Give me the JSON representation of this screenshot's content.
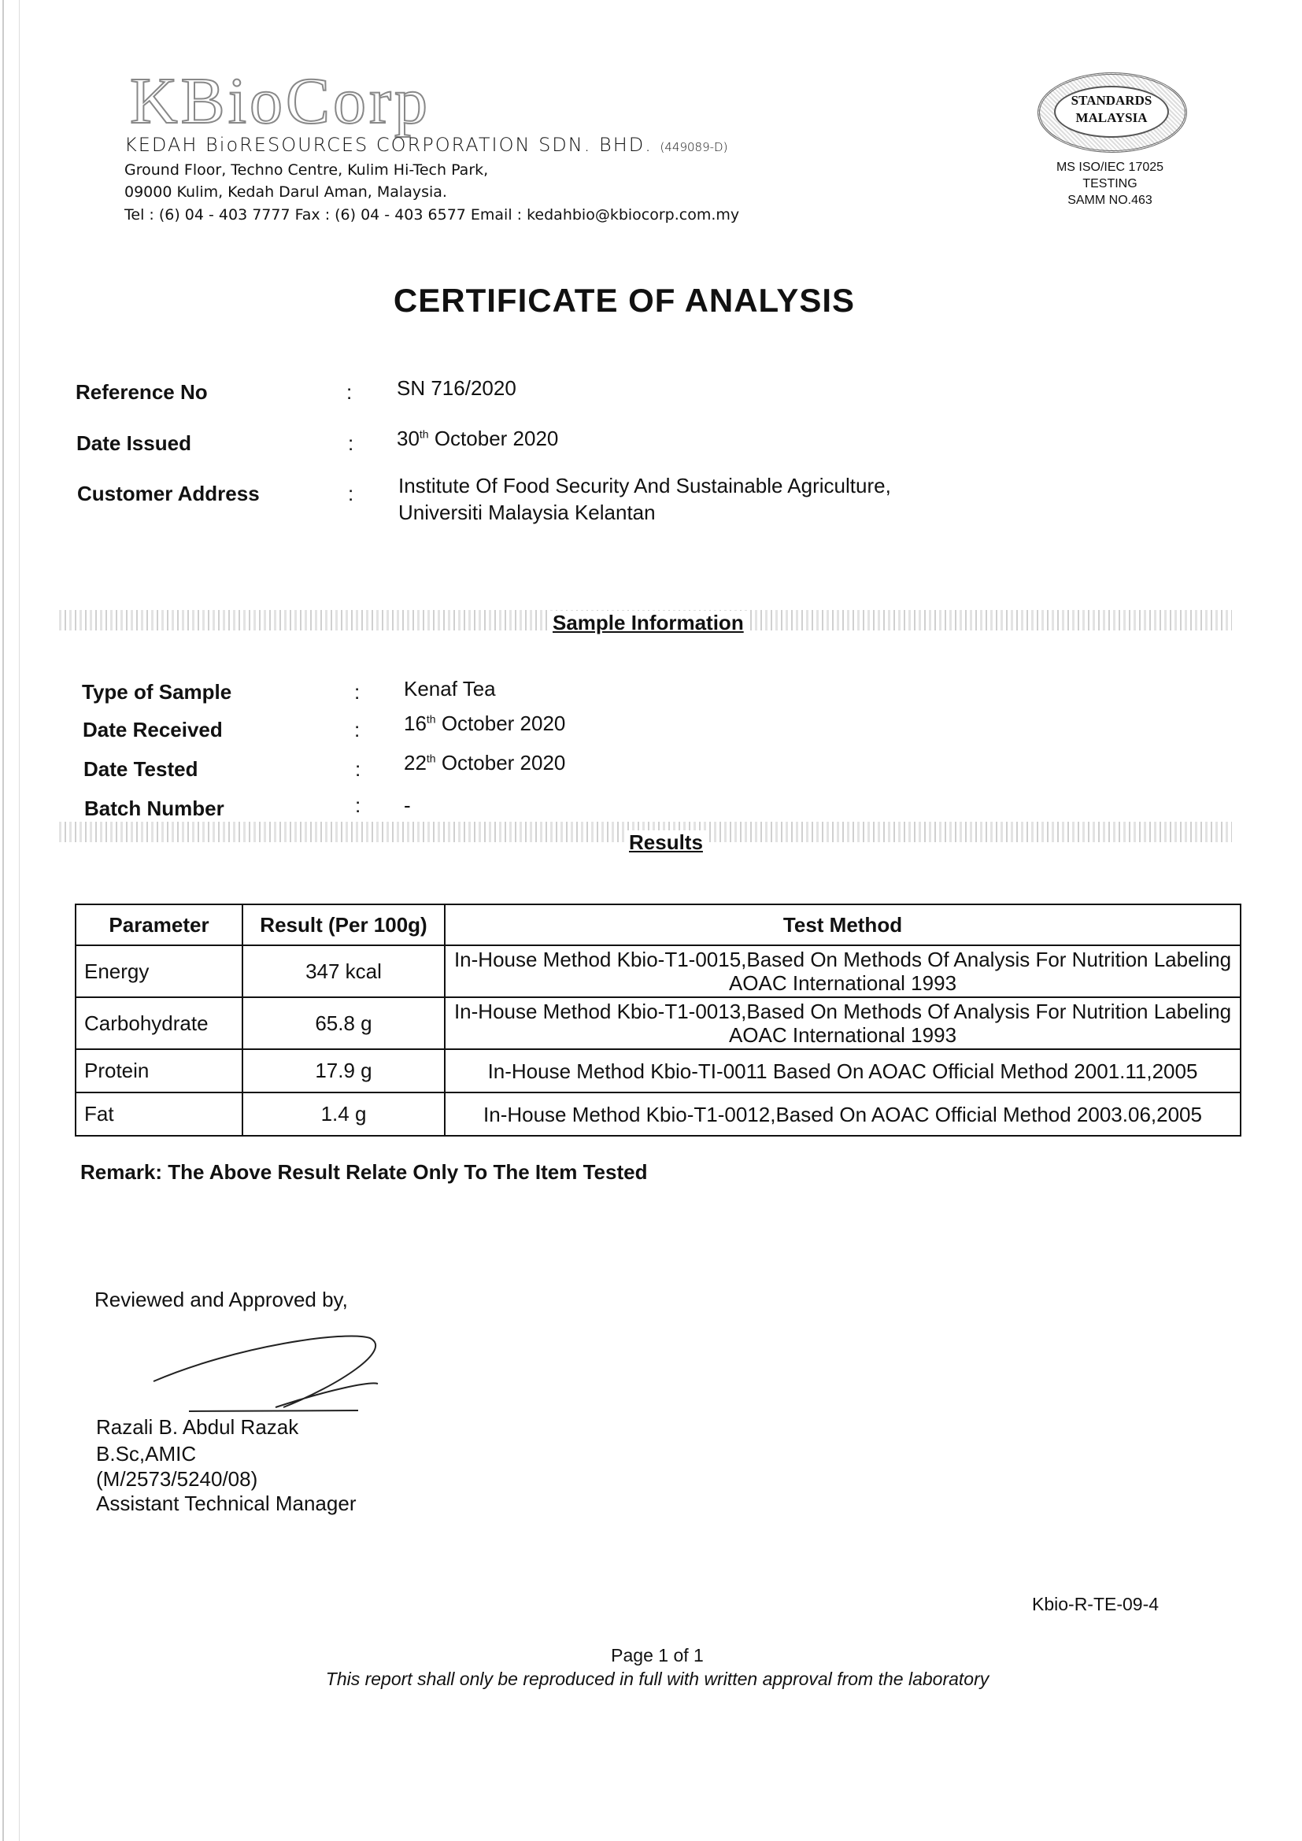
{
  "header": {
    "logo": "KBioCorp",
    "company": "KEDAH BioRESOURCES CORPORATION SDN. BHD.",
    "reg_no": "(449089-D)",
    "address_line1": "Ground Floor, Techno Centre, Kulim Hi-Tech Park,",
    "address_line2": "09000 Kulim, Kedah Darul Aman, Malaysia.",
    "contact": "Tel : (6) 04 - 403 7777   Fax : (6) 04 - 403 6577  Email : kedahbio@kbiocorp.com.my",
    "stamp_text": "STANDARDS MALAYSIA",
    "accreditation": [
      "MS ISO/IEC 17025",
      "TESTING",
      "SAMM NO.463"
    ]
  },
  "title": "CERTIFICATE OF ANALYSIS",
  "info": {
    "reference_label": "Reference No",
    "reference": "SN 716/2020",
    "date_issued_label": "Date Issued",
    "date_issued_day": "30",
    "date_issued_sup": "th",
    "date_issued_rest": " October  2020",
    "customer_label": "Customer  Address",
    "customer_line1": "Institute Of Food Security And Sustainable Agriculture,",
    "customer_line2": "Universiti Malaysia Kelantan",
    "colon": ":"
  },
  "sample": {
    "heading": "Sample Information",
    "type_label": "Type of Sample",
    "type": "Kenaf Tea",
    "received_label": "Date Received",
    "received_day": "16",
    "received_sup": "th",
    "received_rest": "  October  2020",
    "tested_label": "Date Tested",
    "tested_day": "22",
    "tested_sup": "th",
    "tested_rest": "  October  2020",
    "batch_label": "Batch Number",
    "batch": "-"
  },
  "results": {
    "heading": "Results",
    "columns": [
      "Parameter",
      "Result  (Per 100g)",
      "Test Method"
    ],
    "rows": [
      {
        "parameter": "Energy",
        "result": "347   kcal",
        "method": "In-House Method Kbio-T1-0015,Based On Methods Of Analysis For Nutrition Labeling AOAC International 1993"
      },
      {
        "parameter": "Carbohydrate",
        "result": "65.8   g",
        "method": "In-House Method Kbio-T1-0013,Based On Methods Of Analysis For Nutrition Labeling AOAC International 1993"
      },
      {
        "parameter": "Protein",
        "result": "17.9   g",
        "method": "In-House Method Kbio-TI-0011 Based On AOAC Official Method 2001.11,2005"
      },
      {
        "parameter": "Fat",
        "result": "1.4   g",
        "method": "In-House Method Kbio-T1-0012,Based On AOAC Official Method 2003.06,2005"
      }
    ]
  },
  "remark": "Remark:  The Above Result Relate Only To The Item Tested",
  "approval": {
    "reviewed": "Reviewed and Approved by,",
    "name": "Razali B. Abdul Razak",
    "degree": "B.Sc,AMIC",
    "id": "(M/2573/5240/08)",
    "position": "Assistant Technical Manager"
  },
  "footer": {
    "form_code": "Kbio-R-TE-09-4",
    "page": "Page 1 of 1",
    "notice": "This report shall only be reproduced in full with written approval from the laboratory"
  }
}
